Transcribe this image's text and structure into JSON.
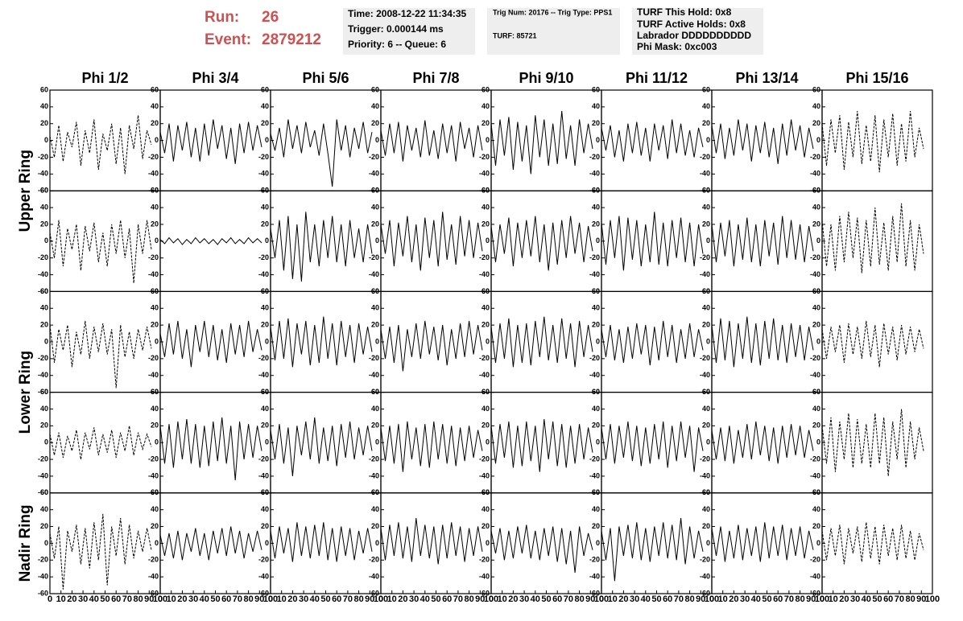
{
  "header": {
    "run_label": "Run:",
    "run": "26",
    "event_label": "Event:",
    "event": "2879212",
    "info": [
      [
        "Time: 2008-12-22 11:34:35",
        "Trigger: 0.000144 ms",
        "Priority: 6 -- Queue: 6"
      ],
      [
        "Trig Num: 20176 -- Trig Type: PPS1",
        "TURF: 85721"
      ],
      [
        "TURF This Hold: 0x8",
        "TURF Active Holds: 0x8",
        "Labrador DDDDDDDDDD",
        "Phi Mask: 0xc003"
      ]
    ]
  },
  "chart_data": {
    "type": "waveform-grid",
    "columns": [
      "Phi 1/2",
      "Phi 3/4",
      "Phi 5/6",
      "Phi 7/8",
      "Phi 9/10",
      "Phi 11/12",
      "Phi 13/14",
      "Phi 15/16"
    ],
    "ring_labels": [
      "Upper Ring",
      "Lower Ring",
      "Nadir Ring"
    ],
    "color": "#000000",
    "line_styles": [
      "dashed",
      "solid",
      "solid",
      "solid",
      "solid",
      "solid",
      "solid",
      "dashed"
    ],
    "x": [
      0,
      4,
      8,
      12,
      16,
      20,
      24,
      28,
      32,
      36,
      40,
      44,
      48,
      52,
      56,
      60,
      64,
      68,
      72,
      76,
      80,
      84,
      88,
      92
    ],
    "xlim": [
      0,
      100
    ],
    "xticks": [
      0,
      10,
      20,
      30,
      40,
      50,
      60,
      70,
      80,
      90,
      100
    ],
    "ylim": [
      -60,
      60
    ],
    "yticks": [
      -60,
      -40,
      -20,
      0,
      20,
      40,
      60
    ],
    "panels": [
      [
        [
          5,
          -20,
          18,
          -25,
          10,
          -8,
          22,
          -30,
          12,
          -15,
          25,
          -35,
          8,
          -12,
          20,
          -28,
          15,
          -40,
          18,
          -10,
          30,
          -22,
          12,
          -5
        ],
        [
          10,
          -15,
          20,
          -25,
          18,
          -12,
          22,
          -20,
          15,
          -25,
          20,
          -18,
          25,
          -10,
          18,
          -22,
          15,
          -28,
          20,
          -15,
          22,
          -12,
          18,
          -8
        ],
        [
          8,
          -12,
          15,
          -20,
          25,
          -10,
          18,
          -15,
          22,
          -8,
          12,
          -18,
          20,
          -15,
          -55,
          25,
          -12,
          18,
          -20,
          15,
          -10,
          22,
          -15,
          10
        ],
        [
          12,
          -18,
          20,
          -15,
          22,
          -25,
          18,
          -12,
          15,
          -20,
          24,
          -18,
          12,
          -22,
          20,
          -15,
          18,
          -25,
          22,
          -10,
          15,
          -20,
          18,
          -12
        ],
        [
          20,
          -30,
          25,
          -18,
          28,
          -35,
          22,
          -25,
          18,
          -40,
          30,
          -20,
          25,
          -30,
          20,
          -28,
          35,
          -22,
          18,
          -30,
          25,
          -15,
          20,
          -10
        ],
        [
          15,
          -12,
          18,
          -20,
          12,
          -25,
          20,
          -15,
          22,
          -18,
          15,
          -25,
          20,
          -12,
          18,
          -22,
          25,
          -15,
          20,
          -18,
          12,
          -20,
          15,
          -8
        ],
        [
          18,
          -15,
          20,
          -22,
          15,
          -18,
          25,
          -12,
          20,
          -25,
          18,
          -15,
          22,
          -20,
          15,
          -28,
          20,
          -18,
          25,
          -12,
          18,
          -20,
          15,
          -10
        ],
        [
          20,
          -30,
          25,
          -15,
          30,
          -35,
          22,
          -20,
          35,
          -28,
          18,
          -25,
          30,
          -38,
          25,
          -20,
          32,
          -30,
          20,
          -25,
          35,
          -20,
          15,
          -10
        ]
      ],
      [
        [
          10,
          -20,
          25,
          -30,
          15,
          -10,
          20,
          -35,
          18,
          -12,
          22,
          -25,
          10,
          -30,
          20,
          -15,
          25,
          -20,
          15,
          -50,
          20,
          -15,
          25,
          -10
        ],
        [
          2,
          -3,
          4,
          -2,
          3,
          -4,
          2,
          -3,
          4,
          -2,
          3,
          -3,
          2,
          -4,
          3,
          -2,
          4,
          -3,
          2,
          -3,
          4,
          -2,
          3,
          -2
        ],
        [
          15,
          -20,
          25,
          -35,
          30,
          -45,
          20,
          -48,
          35,
          -25,
          20,
          -30,
          25,
          -20,
          30,
          -25,
          20,
          -30,
          25,
          -20,
          15,
          -25,
          20,
          -15
        ],
        [
          20,
          -15,
          25,
          -30,
          22,
          -18,
          30,
          -25,
          20,
          -35,
          28,
          -20,
          25,
          -30,
          35,
          -22,
          20,
          -28,
          30,
          -18,
          25,
          -20,
          22,
          -12
        ],
        [
          18,
          -25,
          20,
          -15,
          28,
          -30,
          22,
          -20,
          25,
          -18,
          30,
          -25,
          20,
          -35,
          22,
          -28,
          25,
          -20,
          30,
          -15,
          22,
          -25,
          18,
          -12
        ],
        [
          22,
          -28,
          25,
          -20,
          30,
          -35,
          28,
          -22,
          25,
          -30,
          20,
          -25,
          35,
          -28,
          22,
          -30,
          25,
          -20,
          28,
          -25,
          22,
          -30,
          20,
          -15
        ],
        [
          20,
          -25,
          22,
          -18,
          25,
          -30,
          20,
          -22,
          28,
          -25,
          20,
          -30,
          25,
          -18,
          22,
          -28,
          30,
          -20,
          25,
          -22,
          20,
          -25,
          18,
          -12
        ],
        [
          25,
          -30,
          20,
          -35,
          30,
          -25,
          35,
          -20,
          28,
          -38,
          25,
          -30,
          40,
          -28,
          22,
          -35,
          30,
          -25,
          45,
          -30,
          25,
          -35,
          20,
          -15
        ]
      ],
      [
        [
          20,
          -25,
          15,
          -10,
          20,
          -30,
          12,
          -15,
          25,
          -20,
          18,
          -12,
          22,
          -15,
          15,
          -55,
          20,
          -18,
          12,
          -20,
          15,
          -10,
          18,
          -8
        ],
        [
          10,
          -18,
          22,
          -15,
          25,
          -20,
          15,
          -30,
          20,
          -12,
          25,
          -18,
          20,
          -22,
          15,
          -25,
          22,
          -15,
          20,
          -18,
          25,
          -12,
          15,
          -10
        ],
        [
          18,
          -22,
          25,
          -20,
          28,
          -30,
          22,
          -15,
          25,
          -28,
          20,
          -25,
          30,
          -20,
          22,
          -28,
          25,
          -18,
          20,
          -25,
          22,
          -15,
          18,
          -12
        ],
        [
          15,
          -20,
          18,
          -25,
          20,
          -35,
          15,
          -18,
          22,
          -20,
          25,
          -15,
          18,
          -22,
          20,
          -28,
          15,
          -20,
          22,
          -18,
          25,
          -15,
          20,
          -10
        ],
        [
          18,
          -25,
          22,
          -20,
          28,
          -30,
          20,
          -25,
          22,
          -28,
          25,
          -18,
          30,
          -22,
          20,
          -25,
          28,
          -20,
          22,
          -30,
          25,
          -18,
          20,
          -12
        ],
        [
          15,
          -18,
          20,
          -22,
          15,
          -25,
          18,
          -20,
          22,
          -15,
          20,
          -28,
          18,
          -22,
          25,
          -18,
          20,
          -25,
          15,
          -20,
          22,
          -18,
          15,
          -10
        ],
        [
          20,
          -25,
          28,
          -22,
          25,
          -30,
          22,
          -20,
          30,
          -25,
          22,
          -28,
          25,
          -20,
          28,
          -22,
          20,
          -25,
          22,
          -18,
          20,
          -22,
          18,
          -10
        ],
        [
          15,
          -20,
          18,
          -12,
          20,
          -25,
          22,
          -15,
          18,
          -20,
          25,
          -18,
          20,
          -30,
          22,
          -15,
          18,
          -22,
          20,
          -15,
          18,
          -12,
          15,
          -8
        ]
      ],
      [
        [
          10,
          -15,
          12,
          -18,
          8,
          -10,
          15,
          -20,
          12,
          -8,
          18,
          -15,
          10,
          -12,
          15,
          -18,
          12,
          -10,
          20,
          -15,
          12,
          -8,
          10,
          -5
        ],
        [
          20,
          -25,
          22,
          -30,
          25,
          -20,
          28,
          -25,
          22,
          -30,
          20,
          -28,
          25,
          -22,
          30,
          -25,
          20,
          -45,
          25,
          -20,
          22,
          -18,
          20,
          -10
        ],
        [
          15,
          -20,
          22,
          -25,
          18,
          -40,
          20,
          -15,
          25,
          -20,
          30,
          -25,
          18,
          -22,
          20,
          -28,
          22,
          -18,
          25,
          -20,
          18,
          -15,
          20,
          -10
        ],
        [
          18,
          -22,
          20,
          -25,
          22,
          -35,
          25,
          -20,
          18,
          -28,
          22,
          -30,
          25,
          -20,
          22,
          -25,
          20,
          -28,
          18,
          -22,
          20,
          -18,
          15,
          -10
        ],
        [
          20,
          -25,
          22,
          -18,
          25,
          -30,
          20,
          -28,
          25,
          -22,
          20,
          -35,
          28,
          -20,
          25,
          -28,
          22,
          -30,
          20,
          -25,
          22,
          -20,
          18,
          -12
        ],
        [
          18,
          -20,
          22,
          -25,
          20,
          -18,
          25,
          -22,
          20,
          -28,
          18,
          -25,
          22,
          -20,
          25,
          -30,
          20,
          -22,
          25,
          -18,
          20,
          -35,
          18,
          -10
        ],
        [
          15,
          -20,
          18,
          -22,
          20,
          -25,
          15,
          -18,
          22,
          -20,
          25,
          -15,
          20,
          -22,
          18,
          -25,
          20,
          -18,
          22,
          -15,
          20,
          -18,
          15,
          -10
        ],
        [
          20,
          -25,
          30,
          -35,
          25,
          -20,
          35,
          -30,
          28,
          -25,
          22,
          -30,
          35,
          -25,
          30,
          -40,
          25,
          -20,
          40,
          -30,
          25,
          -20,
          18,
          -10
        ]
      ],
      [
        [
          12,
          -18,
          20,
          -55,
          15,
          -10,
          22,
          -25,
          18,
          -30,
          25,
          -20,
          35,
          -50,
          20,
          -15,
          30,
          -25,
          22,
          -18,
          15,
          -10,
          18,
          -8
        ],
        [
          10,
          -15,
          12,
          -18,
          15,
          -20,
          12,
          -10,
          18,
          -15,
          12,
          -20,
          15,
          -12,
          18,
          -15,
          20,
          -12,
          15,
          -18,
          12,
          -10,
          15,
          -8
        ],
        [
          15,
          -18,
          20,
          -12,
          18,
          -22,
          25,
          -15,
          20,
          -18,
          22,
          -15,
          25,
          -20,
          18,
          -22,
          20,
          -15,
          18,
          -20,
          15,
          -12,
          18,
          -10
        ],
        [
          18,
          -20,
          22,
          -15,
          25,
          -18,
          20,
          -22,
          30,
          -15,
          22,
          -18,
          20,
          -25,
          22,
          -18,
          25,
          -15,
          20,
          -22,
          18,
          -15,
          20,
          -10
        ],
        [
          15,
          -12,
          18,
          -20,
          15,
          -18,
          20,
          -12,
          22,
          -18,
          15,
          -20,
          18,
          -15,
          20,
          -22,
          18,
          -25,
          15,
          -35,
          20,
          -15,
          12,
          -8
        ],
        [
          15,
          -20,
          18,
          -45,
          20,
          -15,
          22,
          -18,
          25,
          -20,
          18,
          -22,
          20,
          -15,
          25,
          -18,
          22,
          -20,
          30,
          -25,
          20,
          -18,
          15,
          -10
        ],
        [
          18,
          -15,
          20,
          -22,
          15,
          -18,
          22,
          -20,
          18,
          -15,
          20,
          -22,
          25,
          -18,
          20,
          -15,
          22,
          -20,
          18,
          -15,
          20,
          -18,
          15,
          -8
        ],
        [
          15,
          -20,
          18,
          -15,
          22,
          -25,
          18,
          -12,
          20,
          -22,
          25,
          -18,
          20,
          -25,
          22,
          -15,
          18,
          -20,
          22,
          -18,
          15,
          -20,
          12,
          -8
        ]
      ]
    ]
  }
}
